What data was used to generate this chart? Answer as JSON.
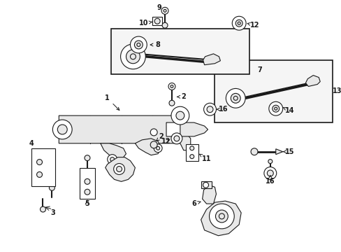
{
  "bg": "#ffffff",
  "fw": 4.89,
  "fh": 3.6,
  "dpi": 100,
  "line_color": "#1a1a1a",
  "fill_light": "#e8e8e8",
  "fill_box": "#f0f0f0"
}
